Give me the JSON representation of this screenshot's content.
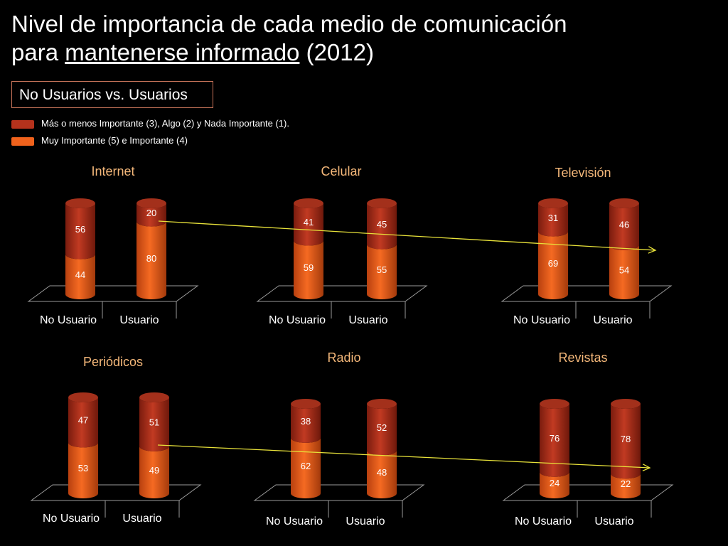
{
  "title": {
    "line1": "Nivel de importancia de cada medio de comunicación",
    "line2_prefix": "para ",
    "line2_underlined": "mantenerse informado",
    "line2_suffix": " (2012)"
  },
  "subtitle": "No Usuarios vs. Usuarios",
  "legend": [
    {
      "label": "Más o menos Importante (3), Algo (2) y Nada Importante (1).",
      "color": "#b5321c"
    },
    {
      "label": "Muy Importante (5) e Importante (4)",
      "color": "#f0621c"
    }
  ],
  "colors": {
    "top": "#b5321c",
    "bottom": "#f0621c",
    "panel_title": "#f5b87a",
    "arrow": "#e8e23a"
  },
  "chart_data": [
    {
      "type": "bar",
      "stacked": true,
      "title": "Internet",
      "categories": [
        "No Usuario",
        "Usuario"
      ],
      "series": [
        {
          "values": [
            44,
            80
          ]
        },
        {
          "values": [
            56,
            20
          ]
        }
      ]
    },
    {
      "type": "bar",
      "stacked": true,
      "title": "Celular",
      "categories": [
        "No Usuario",
        "Usuario"
      ],
      "series": [
        {
          "values": [
            59,
            55
          ]
        },
        {
          "values": [
            41,
            45
          ]
        }
      ]
    },
    {
      "type": "bar",
      "stacked": true,
      "title": "Televisión",
      "categories": [
        "No Usuario",
        "Usuario"
      ],
      "series": [
        {
          "values": [
            69,
            54
          ]
        },
        {
          "values": [
            31,
            46
          ]
        }
      ]
    },
    {
      "type": "bar",
      "stacked": true,
      "title": "Periódicos",
      "categories": [
        "No Usuario",
        "Usuario"
      ],
      "series": [
        {
          "values": [
            53,
            49
          ]
        },
        {
          "values": [
            47,
            51
          ]
        }
      ]
    },
    {
      "type": "bar",
      "stacked": true,
      "title": "Radio",
      "categories": [
        "No Usuario",
        "Usuario"
      ],
      "series": [
        {
          "values": [
            62,
            48
          ]
        },
        {
          "values": [
            38,
            52
          ]
        }
      ]
    },
    {
      "type": "bar",
      "stacked": true,
      "title": "Revistas",
      "categories": [
        "No Usuario",
        "Usuario"
      ],
      "series": [
        {
          "values": [
            24,
            22
          ]
        },
        {
          "values": [
            76,
            78
          ]
        }
      ]
    }
  ]
}
